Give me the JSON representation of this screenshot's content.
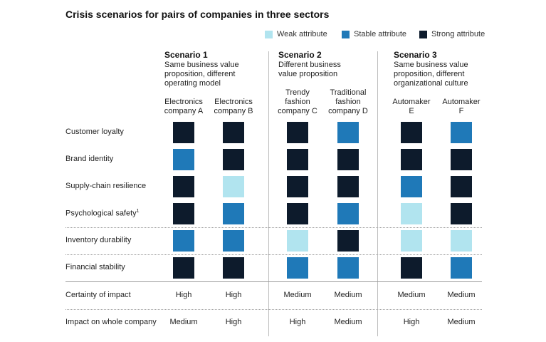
{
  "chart_data": {
    "type": "table",
    "title": "Crisis scenarios for pairs of companies in three sectors",
    "legend": [
      {
        "key": "weak",
        "label": "Weak attribute",
        "color": "#b1e4ef"
      },
      {
        "key": "stable",
        "label": "Stable attribute",
        "color": "#1f79b8"
      },
      {
        "key": "strong",
        "label": "Strong attribute",
        "color": "#0d1b2c"
      }
    ],
    "scenarios": [
      {
        "title": "Scenario 1",
        "description": "Same business value proposition, different operating model"
      },
      {
        "title": "Scenario 2",
        "description": "Different business value proposition"
      },
      {
        "title": "Scenario 3",
        "description": "Same business value proposition, different organizational culture"
      }
    ],
    "companies": [
      "Electronics company A",
      "Electronics company B",
      "Trendy fashion company C",
      "Traditional fashion company D",
      "Automaker E",
      "Automaker F"
    ],
    "attributes": [
      {
        "label": "Customer loyalty",
        "values": [
          "strong",
          "strong",
          "strong",
          "stable",
          "strong",
          "stable"
        ]
      },
      {
        "label": "Brand identity",
        "values": [
          "stable",
          "strong",
          "strong",
          "strong",
          "strong",
          "strong"
        ]
      },
      {
        "label": "Supply-chain resilience",
        "values": [
          "strong",
          "weak",
          "strong",
          "strong",
          "stable",
          "strong"
        ]
      },
      {
        "label": "Psychological safety",
        "footnote": "1",
        "values": [
          "strong",
          "stable",
          "strong",
          "stable",
          "weak",
          "strong"
        ]
      },
      {
        "label": "Inventory durability",
        "values": [
          "stable",
          "stable",
          "weak",
          "strong",
          "weak",
          "weak"
        ]
      },
      {
        "label": "Financial stability",
        "values": [
          "strong",
          "strong",
          "stable",
          "stable",
          "strong",
          "stable"
        ]
      }
    ],
    "text_rows": [
      {
        "label": "Certainty of impact",
        "values": [
          "High",
          "High",
          "Medium",
          "Medium",
          "Medium",
          "Medium"
        ]
      },
      {
        "label": "Impact on whole company",
        "values": [
          "Medium",
          "High",
          "High",
          "Medium",
          "High",
          "Medium"
        ]
      }
    ]
  }
}
